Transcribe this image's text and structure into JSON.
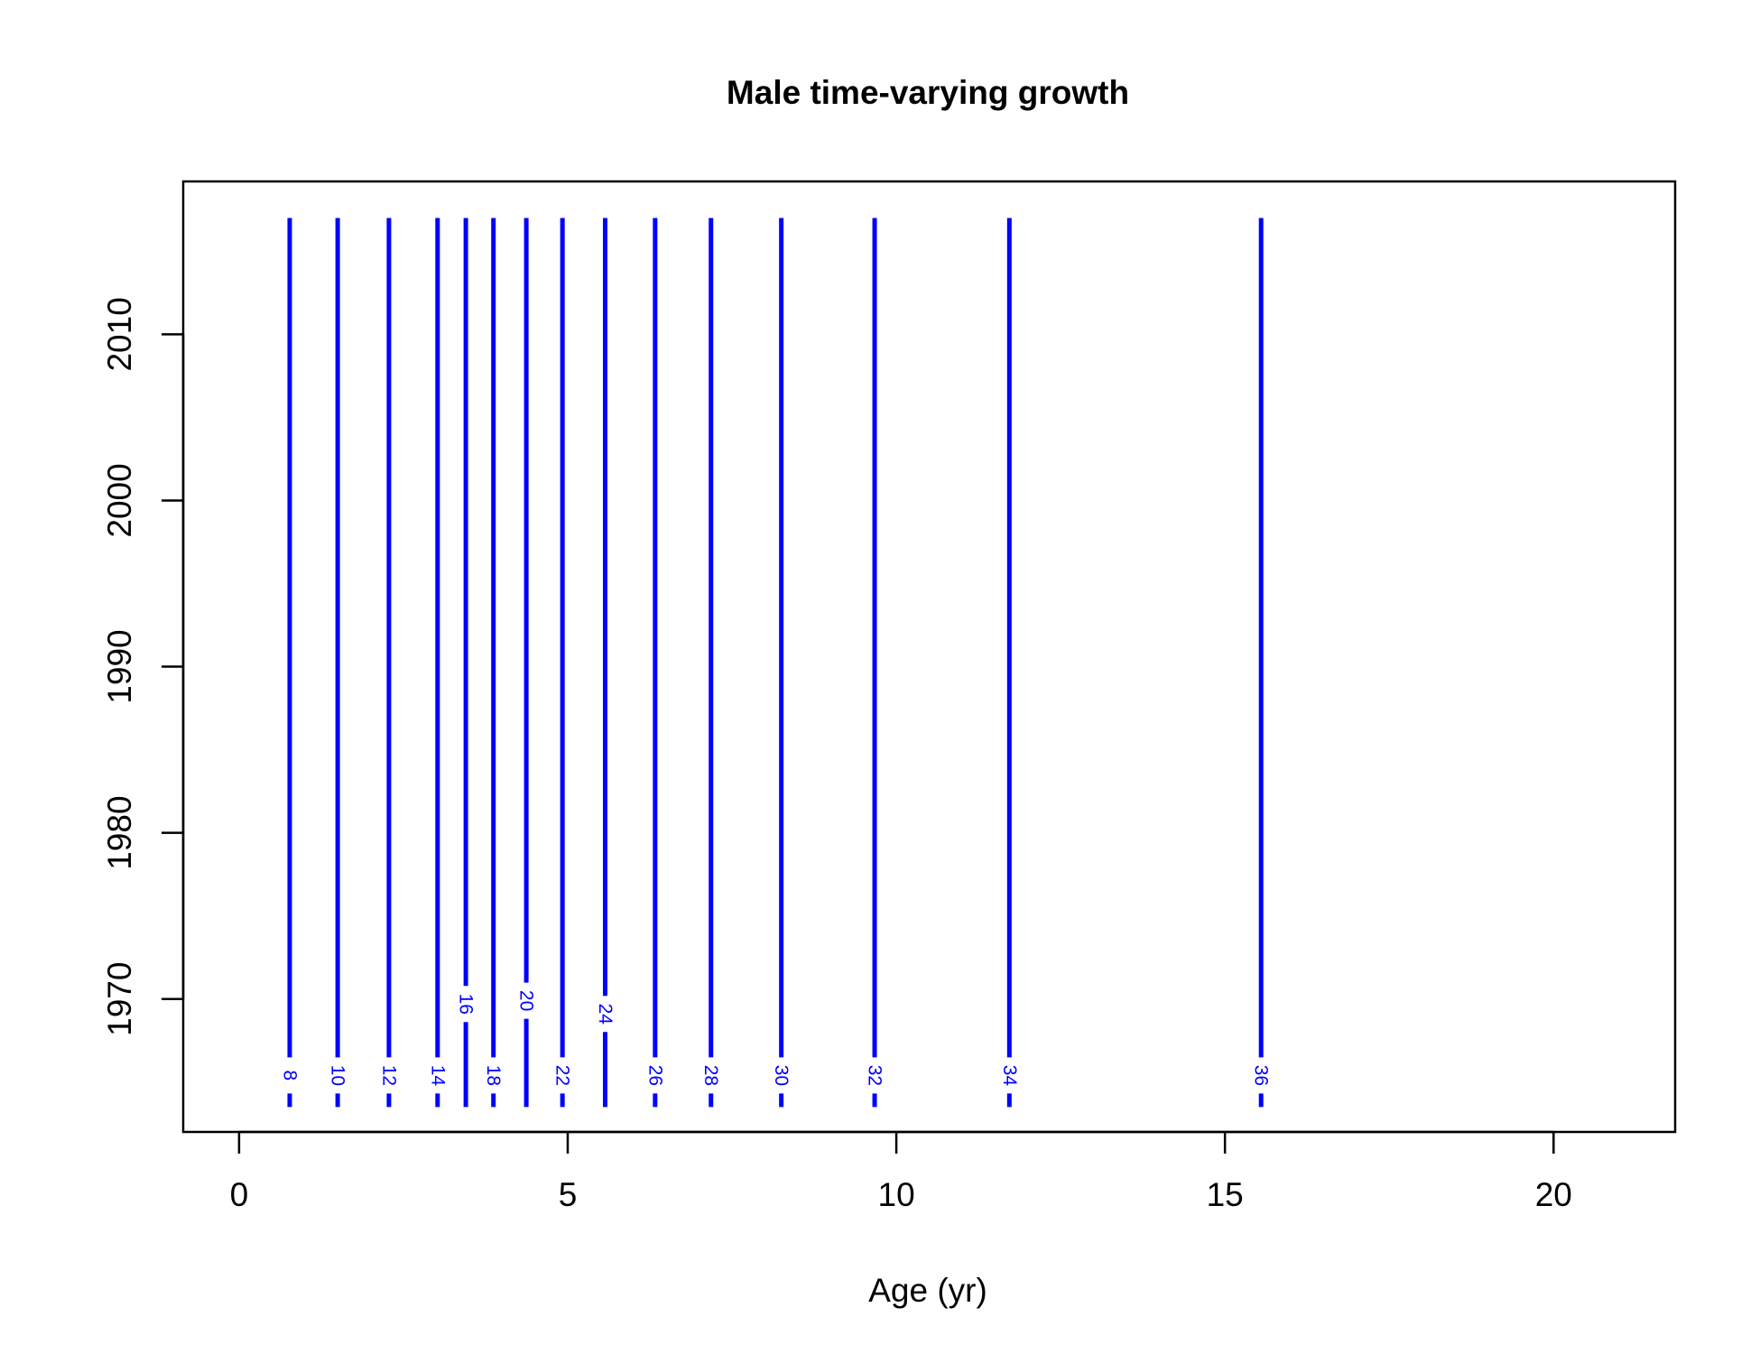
{
  "chart_data": {
    "type": "line",
    "title": "Male time-varying growth",
    "xlabel": "Age (yr)",
    "ylabel": "",
    "xlim": [
      -0.85,
      21.85
    ],
    "ylim": [
      1962,
      2019.2
    ],
    "x_ticks": [
      0,
      5,
      10,
      15,
      20
    ],
    "y_ticks": [
      1970,
      1980,
      1990,
      2000,
      2010
    ],
    "grid": false,
    "legend": "none",
    "line_color": "#0000ff",
    "series": [
      {
        "label": "8",
        "x": 0.77,
        "y_range": [
          1963.5,
          2017
        ],
        "label_y": 1965.4
      },
      {
        "label": "10",
        "x": 1.5,
        "y_range": [
          1963.5,
          2017
        ],
        "label_y": 1965.4
      },
      {
        "label": "12",
        "x": 2.28,
        "y_range": [
          1963.5,
          2017
        ],
        "label_y": 1965.4
      },
      {
        "label": "14",
        "x": 3.02,
        "y_range": [
          1963.5,
          2017
        ],
        "label_y": 1965.4
      },
      {
        "label": "16",
        "x": 3.45,
        "y_range": [
          1963.5,
          2017
        ],
        "label_y": 1969.7
      },
      {
        "label": "18",
        "x": 3.87,
        "y_range": [
          1963.5,
          2017
        ],
        "label_y": 1965.4
      },
      {
        "label": "20",
        "x": 4.37,
        "y_range": [
          1963.5,
          2017
        ],
        "label_y": 1969.9
      },
      {
        "label": "22",
        "x": 4.92,
        "y_range": [
          1963.5,
          2017
        ],
        "label_y": 1965.4
      },
      {
        "label": "24",
        "x": 5.57,
        "y_range": [
          1963.5,
          2017
        ],
        "label_y": 1969.1
      },
      {
        "label": "26",
        "x": 6.33,
        "y_range": [
          1963.5,
          2017
        ],
        "label_y": 1965.4
      },
      {
        "label": "28",
        "x": 7.18,
        "y_range": [
          1963.5,
          2017
        ],
        "label_y": 1965.4
      },
      {
        "label": "30",
        "x": 8.25,
        "y_range": [
          1963.5,
          2017
        ],
        "label_y": 1965.4
      },
      {
        "label": "32",
        "x": 9.67,
        "y_range": [
          1963.5,
          2017
        ],
        "label_y": 1965.4
      },
      {
        "label": "34",
        "x": 11.72,
        "y_range": [
          1963.5,
          2017
        ],
        "label_y": 1965.4
      },
      {
        "label": "36",
        "x": 15.55,
        "y_range": [
          1963.5,
          2017
        ],
        "label_y": 1965.4
      }
    ]
  }
}
